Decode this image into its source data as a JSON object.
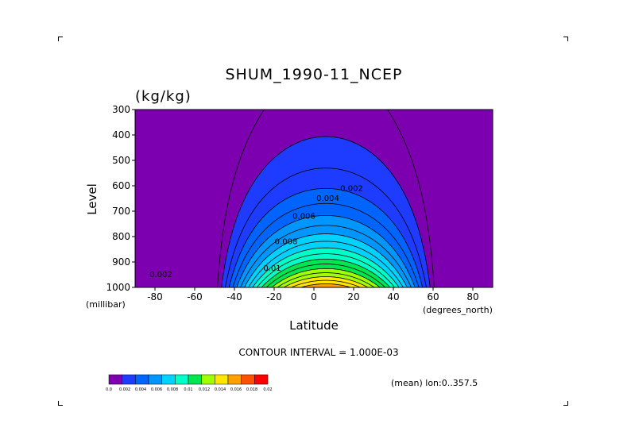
{
  "chart_data": {
    "type": "contour",
    "title": "SHUM_1990-11_NCEP",
    "units": "(kg/kg)",
    "xlabel": "Latitude",
    "ylabel": "Level",
    "x_unit_label": "(degrees_north)",
    "y_unit_label": "(millibar)",
    "xlim": [
      -90,
      90
    ],
    "ylim": [
      1000,
      300
    ],
    "x_ticks": [
      -80,
      -60,
      -40,
      -20,
      0,
      20,
      40,
      60,
      80
    ],
    "x_tick_labels": [
      "-80",
      "-60",
      "-40",
      "-20",
      "0",
      "20",
      "40",
      "60",
      "80"
    ],
    "y_ticks": [
      300,
      400,
      500,
      600,
      700,
      800,
      900,
      1000
    ],
    "y_tick_labels": [
      "300",
      "400",
      "500",
      "600",
      "700",
      "800",
      "900",
      "1000"
    ],
    "contour_interval_text": "CONTOUR INTERVAL = 1.000E-03",
    "annotation": "(mean) lon:0..357.5",
    "contour_levels": [
      0.001,
      0.002,
      0.003,
      0.004,
      0.005,
      0.006,
      0.007,
      0.008,
      0.009,
      0.01,
      0.011,
      0.012,
      0.013,
      0.014,
      0.015,
      0.016,
      0.017,
      0.018
    ],
    "contour_labels": [
      {
        "text": "0.002",
        "lat": 19,
        "lev": 620
      },
      {
        "text": "0.004",
        "lat": 7,
        "lev": 660
      },
      {
        "text": "0.006",
        "lat": -5,
        "lev": 730
      },
      {
        "text": "0.008",
        "lat": -14,
        "lev": 830
      },
      {
        "text": "0.01",
        "lat": -21,
        "lev": 935
      },
      {
        "text": "0.002",
        "lat": -77,
        "lev": 960
      }
    ],
    "colorbar": {
      "colors": [
        "#7c00b0",
        "#1e3cff",
        "#0064ff",
        "#0096ff",
        "#00d2ff",
        "#00ffc8",
        "#00e650",
        "#a0ff00",
        "#ffe600",
        "#ffa000",
        "#ff5000",
        "#ff0000"
      ],
      "tick_labels": [
        "0.0",
        "0.002",
        "0.004",
        "0.006",
        "0.008",
        "0.01",
        "0.012",
        "0.014",
        "0.016",
        "0.018",
        "0.02"
      ]
    },
    "field": {
      "center_lat": 6,
      "peak_value": 0.0185,
      "surface_halfwidth_lat": 57,
      "decay_height_mb": 230
    }
  }
}
